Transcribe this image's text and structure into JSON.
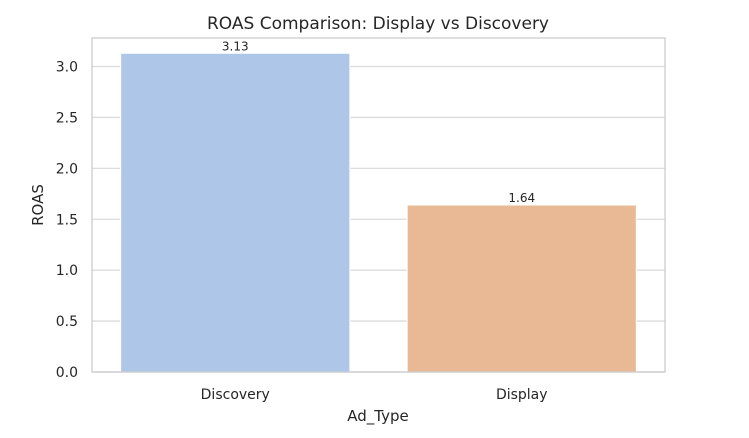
{
  "chart_data": {
    "type": "bar",
    "title": "ROAS Comparison: Display vs Discovery",
    "xlabel": "Ad_Type",
    "ylabel": "ROAS",
    "categories": [
      "Discovery",
      "Display"
    ],
    "values": [
      3.13,
      1.64
    ],
    "value_labels": [
      "3.13",
      "1.64"
    ],
    "colors": [
      "#aec7e8",
      "#e8b994"
    ],
    "ylim": [
      0,
      3.28
    ],
    "yticks": [
      0.0,
      0.5,
      1.0,
      1.5,
      2.0,
      2.5,
      3.0
    ],
    "ytick_labels": [
      "0.0",
      "0.5",
      "1.0",
      "1.5",
      "2.0",
      "2.5",
      "3.0"
    ],
    "grid": true,
    "legend": "none"
  }
}
